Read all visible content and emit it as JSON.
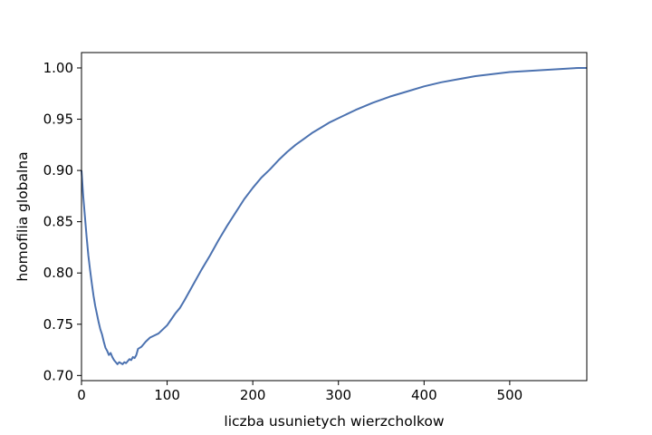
{
  "chart_data": {
    "type": "line",
    "title": "",
    "xlabel": "liczba usunietych wierzcholkow",
    "ylabel": "homofilia globalna",
    "xlim": [
      0,
      590
    ],
    "ylim": [
      0.695,
      1.015
    ],
    "x_ticks": [
      0,
      100,
      200,
      300,
      400,
      500
    ],
    "x_tick_labels": [
      "0",
      "100",
      "200",
      "300",
      "400",
      "500"
    ],
    "y_ticks": [
      0.7,
      0.75,
      0.8,
      0.85,
      0.9,
      0.95,
      1.0
    ],
    "y_tick_labels": [
      "0.70",
      "0.75",
      "0.80",
      "0.85",
      "0.90",
      "0.95",
      "1.00"
    ],
    "grid": false,
    "line_color": "#4c72b0",
    "series": [
      {
        "x": [
          0,
          2,
          4,
          6,
          8,
          10,
          12,
          14,
          16,
          18,
          20,
          22,
          24,
          26,
          28,
          30,
          32,
          34,
          36,
          38,
          40,
          42,
          44,
          46,
          48,
          50,
          52,
          54,
          56,
          58,
          60,
          62,
          64,
          66,
          68,
          70,
          75,
          80,
          85,
          90,
          95,
          100,
          105,
          110,
          115,
          120,
          130,
          140,
          150,
          160,
          170,
          180,
          190,
          200,
          210,
          220,
          230,
          240,
          250,
          260,
          270,
          280,
          290,
          300,
          320,
          340,
          360,
          380,
          400,
          420,
          440,
          460,
          480,
          500,
          520,
          540,
          560,
          580,
          590
        ],
        "y": [
          0.9,
          0.875,
          0.855,
          0.835,
          0.817,
          0.803,
          0.79,
          0.778,
          0.768,
          0.76,
          0.752,
          0.745,
          0.74,
          0.733,
          0.727,
          0.724,
          0.72,
          0.722,
          0.718,
          0.715,
          0.713,
          0.711,
          0.713,
          0.712,
          0.711,
          0.713,
          0.712,
          0.714,
          0.716,
          0.715,
          0.718,
          0.717,
          0.72,
          0.726,
          0.727,
          0.728,
          0.733,
          0.737,
          0.739,
          0.741,
          0.745,
          0.749,
          0.755,
          0.761,
          0.766,
          0.773,
          0.788,
          0.803,
          0.817,
          0.832,
          0.846,
          0.859,
          0.872,
          0.883,
          0.893,
          0.901,
          0.91,
          0.918,
          0.925,
          0.931,
          0.937,
          0.942,
          0.947,
          0.951,
          0.959,
          0.966,
          0.972,
          0.977,
          0.982,
          0.986,
          0.989,
          0.992,
          0.994,
          0.996,
          0.997,
          0.998,
          0.999,
          1.0,
          1.0
        ]
      }
    ]
  }
}
